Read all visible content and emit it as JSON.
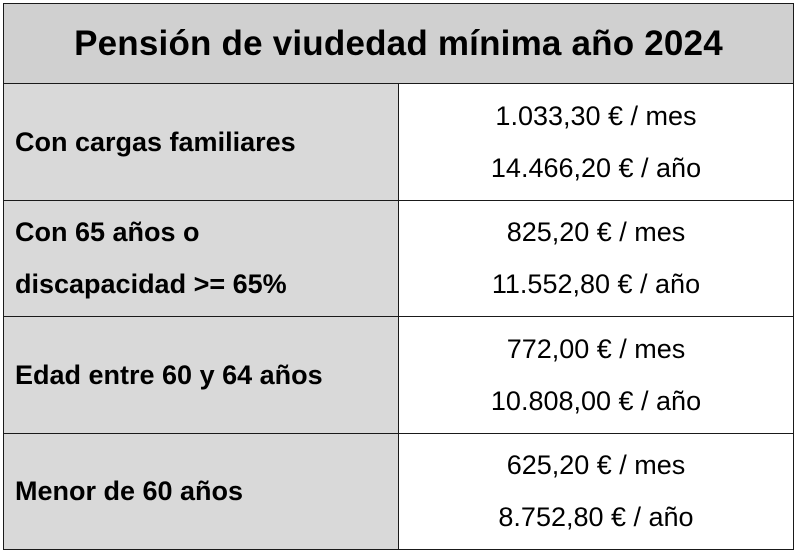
{
  "title": "Pensión de viudedad mínima año 2024",
  "rows": [
    {
      "label_lines": [
        "Con cargas familiares"
      ],
      "monthly": "1.033,30 € / mes",
      "yearly": "14.466,20 € / año"
    },
    {
      "label_lines": [
        "Con 65 años o",
        "discapacidad >= 65%"
      ],
      "monthly": "825,20 € / mes",
      "yearly": "11.552,80 € / año"
    },
    {
      "label_lines": [
        "Edad entre 60 y 64 años"
      ],
      "monthly": "772,00 € / mes",
      "yearly": "10.808,00 € / año"
    },
    {
      "label_lines": [
        "Menor de 60 años"
      ],
      "monthly": "625,20 € / mes",
      "yearly": "8.752,80 € / año"
    }
  ],
  "colors": {
    "header_background": "#d0d0d0",
    "label_background": "#d9d9d9",
    "value_background": "#ffffff",
    "border": "#1a1a1a"
  }
}
